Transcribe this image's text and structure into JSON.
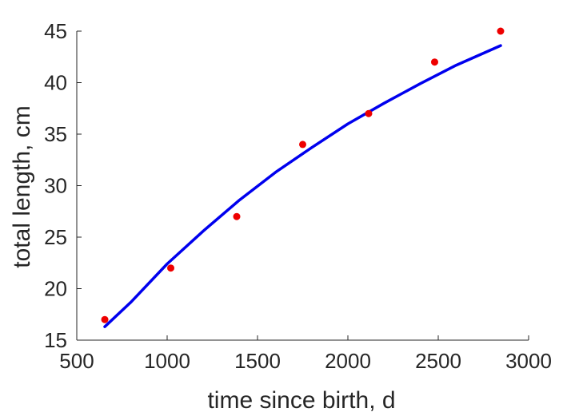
{
  "chart_data": {
    "type": "scatter",
    "title": "",
    "xlabel": "time since birth, d",
    "ylabel": "total length, cm",
    "xlim": [
      500,
      3000
    ],
    "ylim": [
      15,
      45
    ],
    "xticks": [
      500,
      1000,
      1500,
      2000,
      2500,
      3000
    ],
    "yticks": [
      15,
      20,
      25,
      30,
      35,
      40,
      45
    ],
    "grid": false,
    "colors": {
      "points": "#ee0000",
      "fit": "#0000ee",
      "axes": "#262626"
    },
    "points": [
      {
        "x": 655,
        "y": 17
      },
      {
        "x": 1020,
        "y": 22
      },
      {
        "x": 1385,
        "y": 27
      },
      {
        "x": 1750,
        "y": 34
      },
      {
        "x": 2115,
        "y": 37
      },
      {
        "x": 2480,
        "y": 42
      },
      {
        "x": 2845,
        "y": 45
      }
    ],
    "fit_curve": [
      {
        "x": 655,
        "y": 16.3
      },
      {
        "x": 800,
        "y": 18.7
      },
      {
        "x": 1000,
        "y": 22.4
      },
      {
        "x": 1200,
        "y": 25.6
      },
      {
        "x": 1400,
        "y": 28.6
      },
      {
        "x": 1600,
        "y": 31.3
      },
      {
        "x": 1800,
        "y": 33.7
      },
      {
        "x": 2000,
        "y": 36.0
      },
      {
        "x": 2200,
        "y": 38.0
      },
      {
        "x": 2400,
        "y": 39.9
      },
      {
        "x": 2600,
        "y": 41.7
      },
      {
        "x": 2845,
        "y": 43.6
      }
    ]
  }
}
